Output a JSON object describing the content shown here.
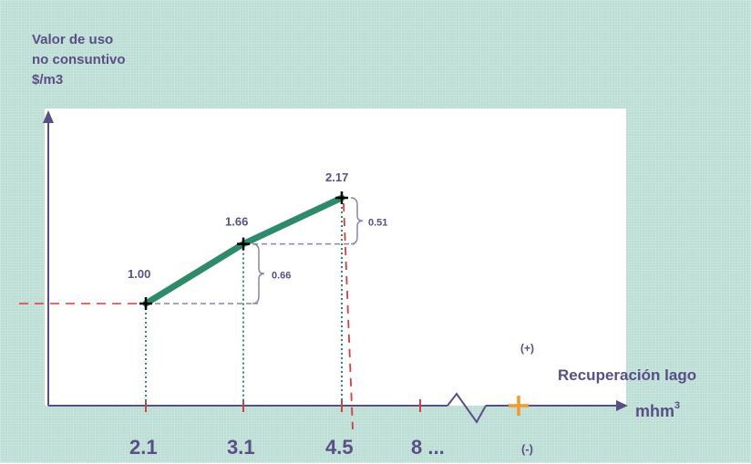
{
  "chart_data": {
    "type": "line",
    "ylabel": [
      "Valor de uso",
      "no consuntivo",
      "$/m3"
    ],
    "xlabel": "Recuperación lago",
    "x_unit": "mhm3",
    "x_ticks": [
      "2.1",
      "3.1",
      "4.5",
      "8 ..."
    ],
    "x": [
      2.1,
      3.1,
      4.5
    ],
    "y": [
      1.0,
      1.66,
      2.17
    ],
    "point_labels": [
      "1.00",
      "1.66",
      "2.17"
    ],
    "differences": [
      {
        "value": "0.66",
        "from": 1.0,
        "to": 1.66
      },
      {
        "value": "0.51",
        "from": 1.66,
        "to": 2.17
      }
    ],
    "sign_markers": {
      "plus": "(+)",
      "minus": "(-)"
    },
    "colors": {
      "line": "#2e8b6a",
      "text": "#5a4e86",
      "reference": "#e03a3a",
      "guide": "#2e8b6a",
      "horizontal_guide": "#8a80b8",
      "orange_marker": "#f39a2d",
      "axis": "#5a4e86"
    }
  }
}
